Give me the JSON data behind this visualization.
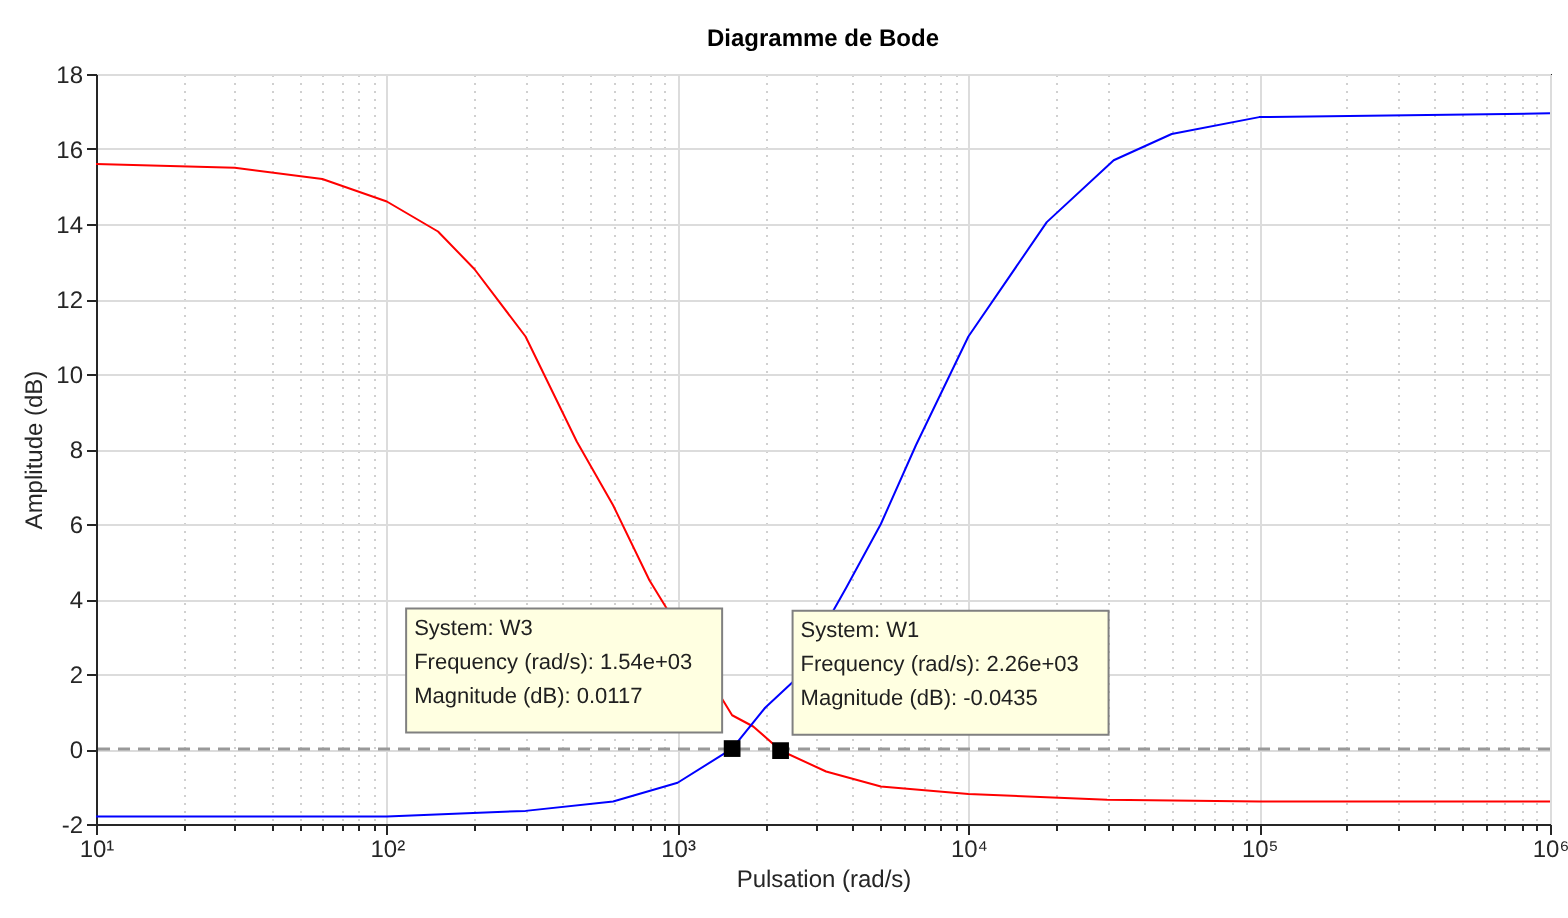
{
  "chart_data": {
    "type": "line",
    "title": "Diagramme de Bode",
    "xlabel": "Pulsation  (rad/s)",
    "ylabel": "Amplitude (dB)",
    "log": "x",
    "xlim": [
      10,
      1000000
    ],
    "ylim": [
      -2,
      18
    ],
    "xticks": [
      {
        "value": 10,
        "label": "10¹"
      },
      {
        "value": 100,
        "label": "10²"
      },
      {
        "value": 1000,
        "label": "10³"
      },
      {
        "value": 10000,
        "label": "10⁴"
      },
      {
        "value": 100000,
        "label": "10⁵"
      },
      {
        "value": 1000000,
        "label": "10⁶"
      }
    ],
    "yticks": [
      -2,
      0,
      2,
      4,
      6,
      8,
      10,
      12,
      14,
      16,
      18
    ],
    "grid": true,
    "series": [
      {
        "color": "#ff0000",
        "x": [
          10,
          30,
          60,
          100,
          150,
          200,
          300,
          450,
          600,
          800,
          1540,
          1820,
          2260,
          3240,
          5000,
          10000,
          30000,
          100000,
          1000000
        ],
        "values": [
          15.6,
          15.5,
          15.2,
          14.6,
          13.8,
          12.8,
          11,
          8.2,
          6.5,
          4.5,
          0.9,
          0.6,
          -0.04,
          -0.6,
          -1,
          -1.2,
          -1.35,
          -1.4,
          -1.4
        ]
      },
      {
        "color": "#0000ff",
        "x": [
          10,
          100,
          300,
          600,
          1000,
          1540,
          2000,
          2500,
          3800,
          5000,
          6600,
          10000,
          18600,
          31600,
          50000,
          100000,
          1000000
        ],
        "values": [
          -1.8,
          -1.8,
          -1.65,
          -1.4,
          -0.9,
          0.01,
          1.1,
          1.8,
          4.3,
          6,
          8.1,
          11,
          14.05,
          15.7,
          16.4,
          16.85,
          16.95
        ]
      }
    ],
    "ref_lines": [
      {
        "axis": "y",
        "value": 0,
        "color": "#999999",
        "line_style": "dashed"
      }
    ],
    "annotations": [
      {
        "text": "System: W3\nFrequency (rad/s): 1.54e+03\nMagnitude (dB): 0.0117",
        "x": 1540,
        "y": 0.0117
      },
      {
        "text": "System: W1\nFrequency (rad/s): 2.26e+03\nMagnitude (dB): -0.0435",
        "x": 2260,
        "y": -0.0435
      }
    ]
  }
}
